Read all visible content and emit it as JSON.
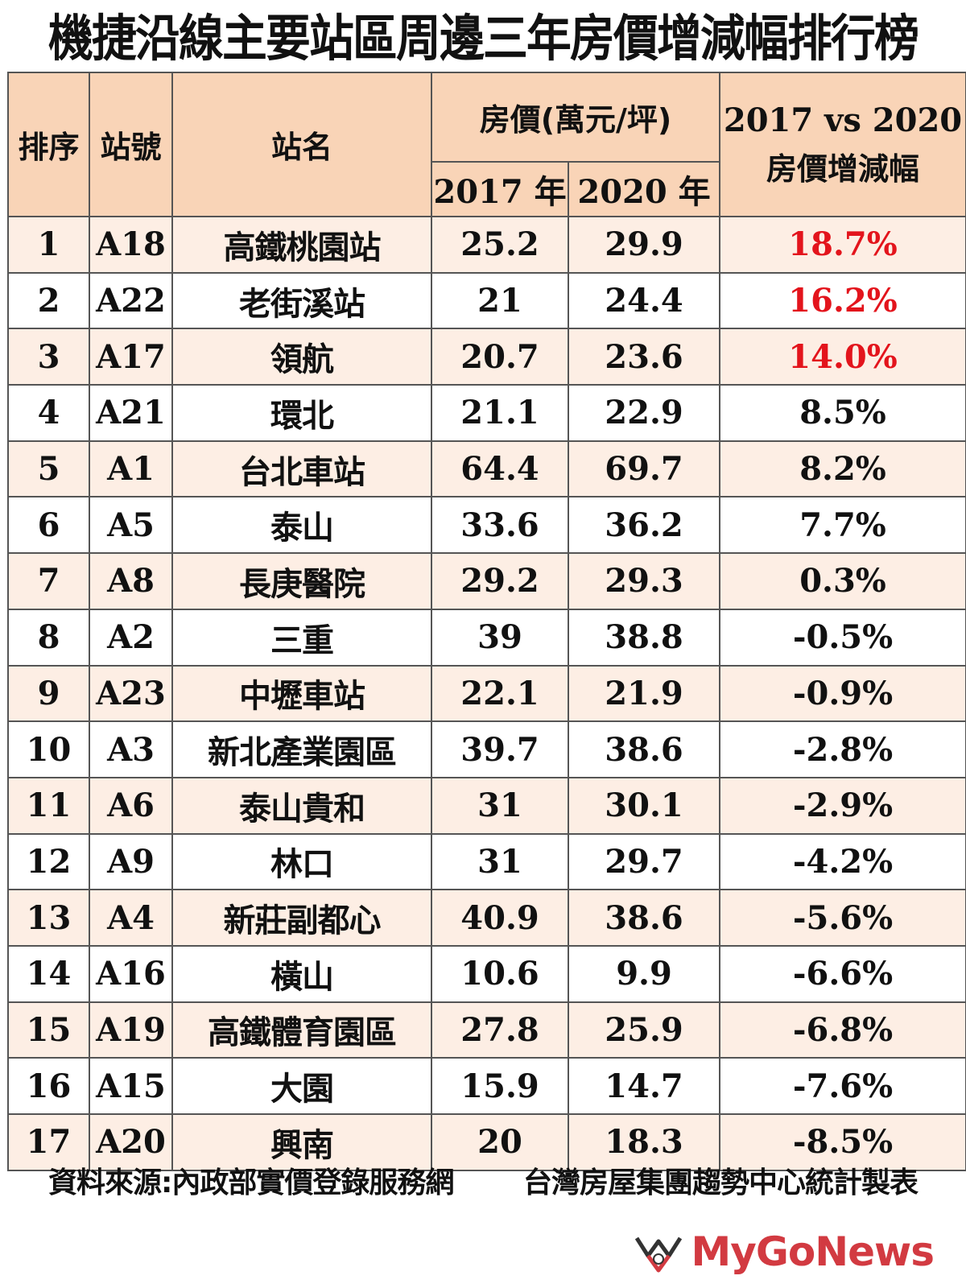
{
  "title": "機捷沿線主要站區周邊三年房價增減幅排行榜",
  "colors": {
    "header_bg": "#f9d4b7",
    "odd_row_bg": "#fdeee4",
    "highlight_text": "#e3141c",
    "logo": "#d23a41"
  },
  "header": {
    "rank": "排序",
    "code": "站號",
    "name": "站名",
    "price_group": "房價(萬元/坪)",
    "y2017": "2017 年",
    "y2020": "2020 年",
    "change_line1": "2017 vs 2020",
    "change_line2": "房價增減幅"
  },
  "chart_data": {
    "type": "table",
    "title": "機捷沿線主要站區周邊三年房價增減幅排行榜",
    "columns": [
      "排序",
      "站號",
      "站名",
      "2017 年",
      "2020 年",
      "2017 vs 2020 房價增減幅"
    ],
    "rows": [
      {
        "rank": "1",
        "code": "A18",
        "name": "高鐵桃園站",
        "p2017": "25.2",
        "p2020": "29.9",
        "change": "18.7%",
        "highlight": true
      },
      {
        "rank": "2",
        "code": "A22",
        "name": "老街溪站",
        "p2017": "21",
        "p2020": "24.4",
        "change": "16.2%",
        "highlight": true
      },
      {
        "rank": "3",
        "code": "A17",
        "name": "領航",
        "p2017": "20.7",
        "p2020": "23.6",
        "change": "14.0%",
        "highlight": true
      },
      {
        "rank": "4",
        "code": "A21",
        "name": "環北",
        "p2017": "21.1",
        "p2020": "22.9",
        "change": "8.5%",
        "highlight": false
      },
      {
        "rank": "5",
        "code": "A1",
        "name": "台北車站",
        "p2017": "64.4",
        "p2020": "69.7",
        "change": "8.2%",
        "highlight": false
      },
      {
        "rank": "6",
        "code": "A5",
        "name": "泰山",
        "p2017": "33.6",
        "p2020": "36.2",
        "change": "7.7%",
        "highlight": false
      },
      {
        "rank": "7",
        "code": "A8",
        "name": "長庚醫院",
        "p2017": "29.2",
        "p2020": "29.3",
        "change": "0.3%",
        "highlight": false
      },
      {
        "rank": "8",
        "code": "A2",
        "name": "三重",
        "p2017": "39",
        "p2020": "38.8",
        "change": "-0.5%",
        "highlight": false
      },
      {
        "rank": "9",
        "code": "A23",
        "name": "中壢車站",
        "p2017": "22.1",
        "p2020": "21.9",
        "change": "-0.9%",
        "highlight": false
      },
      {
        "rank": "10",
        "code": "A3",
        "name": "新北產業園區",
        "p2017": "39.7",
        "p2020": "38.6",
        "change": "-2.8%",
        "highlight": false
      },
      {
        "rank": "11",
        "code": "A6",
        "name": "泰山貴和",
        "p2017": "31",
        "p2020": "30.1",
        "change": "-2.9%",
        "highlight": false
      },
      {
        "rank": "12",
        "code": "A9",
        "name": "林口",
        "p2017": "31",
        "p2020": "29.7",
        "change": "-4.2%",
        "highlight": false
      },
      {
        "rank": "13",
        "code": "A4",
        "name": "新莊副都心",
        "p2017": "40.9",
        "p2020": "38.6",
        "change": "-5.6%",
        "highlight": false
      },
      {
        "rank": "14",
        "code": "A16",
        "name": "橫山",
        "p2017": "10.6",
        "p2020": "9.9",
        "change": "-6.6%",
        "highlight": false
      },
      {
        "rank": "15",
        "code": "A19",
        "name": "高鐵體育園區",
        "p2017": "27.8",
        "p2020": "25.9",
        "change": "-6.8%",
        "highlight": false
      },
      {
        "rank": "16",
        "code": "A15",
        "name": "大園",
        "p2017": "15.9",
        "p2020": "14.7",
        "change": "-7.6%",
        "highlight": false
      },
      {
        "rank": "17",
        "code": "A20",
        "name": "興南",
        "p2017": "20",
        "p2020": "18.3",
        "change": "-8.5%",
        "highlight": false
      }
    ]
  },
  "footer": {
    "source": "資料來源:內政部實價登錄服務網",
    "credit": "台灣房屋集團趨勢中心統計製表"
  },
  "logo": {
    "text": "MyGoNews",
    "icon": "mygonews-logo-icon"
  }
}
